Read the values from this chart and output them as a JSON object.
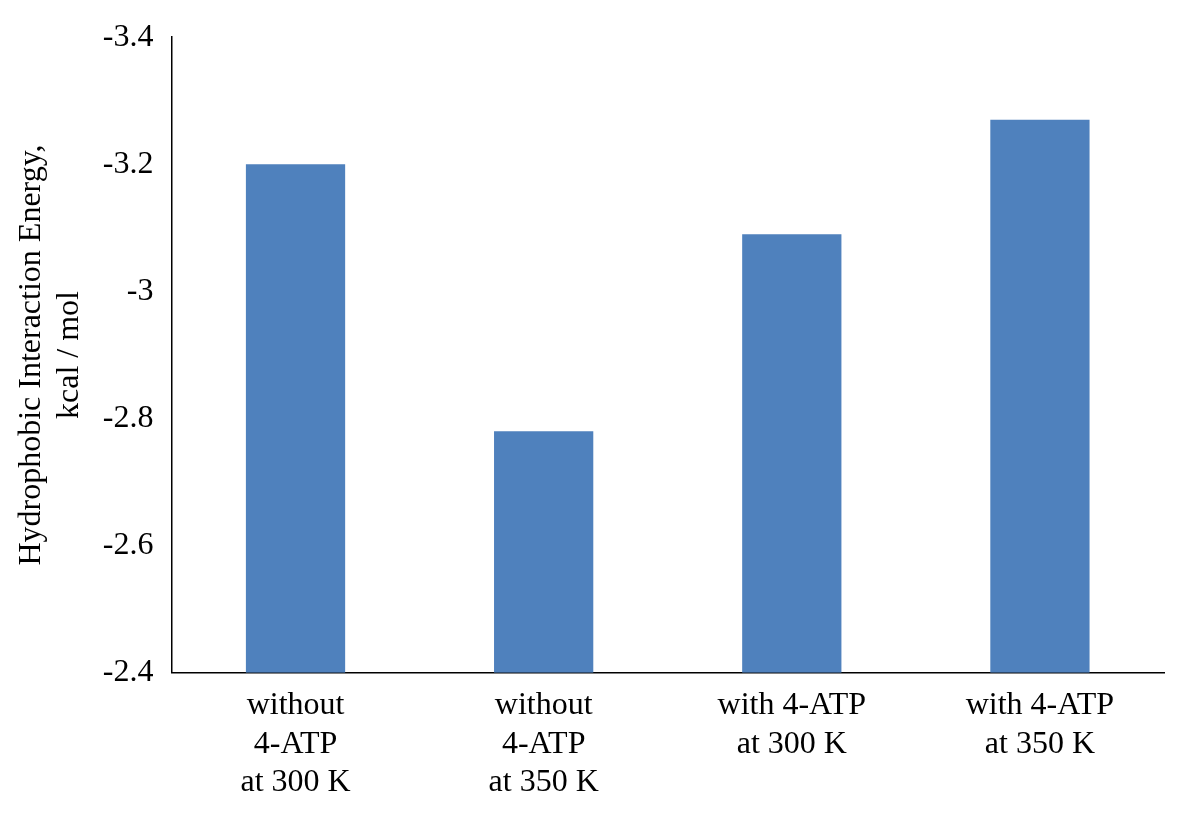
{
  "chart_data": {
    "type": "bar",
    "ylabel": "Hydrophobic Interaction Energy,\nkcal / mol",
    "categories": [
      "without\n4-ATP\nat 300 K",
      "without\n4-ATP\nat 350 K",
      "with 4-ATP\nat 300 K",
      "with 4-ATP\nat 350 K"
    ],
    "values": [
      -3.2,
      -2.78,
      -3.09,
      -3.27
    ],
    "color": "#4f81bd",
    "ylim": [
      -2.4,
      -3.4
    ],
    "yticks": [
      -2.4,
      -2.6,
      -2.8,
      -3,
      -3.2,
      -3.4
    ],
    "grid": false,
    "legend": false
  }
}
